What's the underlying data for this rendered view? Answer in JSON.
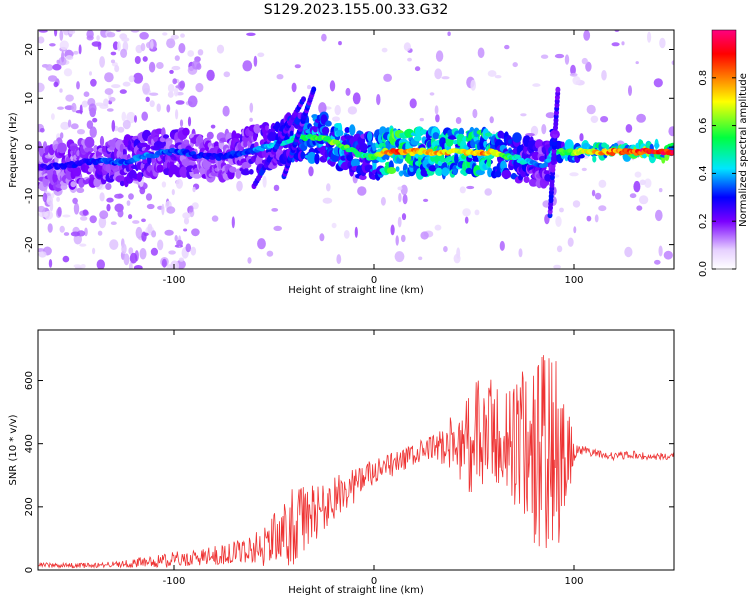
{
  "chart_data": [
    {
      "type": "heatmap",
      "title": "S129.2023.155.00.33.G32",
      "xlabel": "Height of straight line (km)",
      "ylabel": "Frequency (Hz)",
      "xlim": [
        -168,
        150
      ],
      "ylim": [
        -25,
        24
      ],
      "xticks": [
        -100,
        0,
        100
      ],
      "yticks": [
        -20,
        -10,
        0,
        10,
        20
      ],
      "grid": false,
      "ridge": {
        "x": [
          -168,
          -155,
          -145,
          -135,
          -125,
          -115,
          -105,
          -95,
          -85,
          -75,
          -65,
          -55,
          -45,
          -40,
          -35,
          -30,
          -25,
          -20,
          -15,
          -10,
          -5,
          0,
          5,
          10,
          15,
          20,
          25,
          30,
          35,
          40,
          45,
          50,
          55,
          60,
          65,
          70,
          75,
          80,
          85,
          90,
          95,
          100,
          105,
          110,
          115,
          120,
          125,
          130,
          135,
          140,
          145,
          150
        ],
        "y": [
          -4,
          -4,
          -3,
          -3,
          -3,
          -2,
          -1,
          -1,
          -2,
          -2,
          -1,
          0,
          1,
          2,
          2,
          2,
          2,
          1,
          0,
          -1,
          -2,
          -2,
          -1,
          -1,
          -1,
          -1,
          -1,
          -1,
          -1,
          -1,
          -1,
          -1,
          -1,
          -1,
          -2,
          -2,
          -3,
          -3,
          -4,
          -1,
          -1,
          -1,
          -1,
          -1,
          -1,
          -1,
          -1,
          -1,
          -1,
          -1,
          -1,
          -1
        ],
        "amplitude": [
          0.25,
          0.3,
          0.3,
          0.35,
          0.35,
          0.4,
          0.35,
          0.35,
          0.3,
          0.3,
          0.35,
          0.4,
          0.45,
          0.5,
          0.55,
          0.6,
          0.6,
          0.65,
          0.6,
          0.55,
          0.5,
          0.6,
          0.75,
          0.9,
          0.85,
          0.8,
          0.75,
          0.8,
          0.8,
          0.75,
          0.75,
          0.8,
          0.85,
          0.75,
          0.6,
          0.5,
          0.45,
          0.4,
          0.35,
          0.5,
          0.6,
          0.65,
          0.7,
          0.75,
          0.8,
          0.85,
          0.85,
          0.9,
          0.95,
          0.95,
          0.95,
          0.95
        ]
      },
      "colorbar": {
        "label": "Normalized spectral amplitude",
        "range": [
          0.0,
          1.0
        ],
        "ticks": [
          0.0,
          0.2,
          0.4,
          0.6,
          0.8
        ],
        "tick_labels": [
          "0.0",
          "0.2",
          "0.4",
          "0.6",
          "0.8"
        ],
        "colors": [
          "#ffffff",
          "#e6d0ff",
          "#7a00ff",
          "#0000ff",
          "#00e6ff",
          "#00ff40",
          "#ffff00",
          "#ff8000",
          "#ff0000",
          "#ff0080"
        ]
      }
    },
    {
      "type": "line",
      "title": "",
      "xlabel": "Height of straight line (km)",
      "ylabel": "SNR (10 * v/v)",
      "xlim": [
        -168,
        150
      ],
      "ylim": [
        0,
        760
      ],
      "xticks": [
        -100,
        0,
        100
      ],
      "yticks": [
        0,
        200,
        400,
        600
      ],
      "grid": false,
      "series": [
        {
          "color": "#ee3333",
          "x": [
            -168,
            -160,
            -150,
            -140,
            -130,
            -120,
            -110,
            -100,
            -90,
            -80,
            -70,
            -60,
            -55,
            -50,
            -45,
            -40,
            -35,
            -30,
            -25,
            -20,
            -15,
            -10,
            -5,
            0,
            5,
            10,
            15,
            20,
            25,
            30,
            35,
            40,
            45,
            50,
            55,
            60,
            65,
            70,
            75,
            80,
            85,
            90,
            95,
            100,
            105,
            110,
            115,
            120,
            125,
            130,
            135,
            140,
            145,
            150
          ],
          "y": [
            15,
            15,
            14,
            15,
            18,
            22,
            27,
            33,
            38,
            45,
            55,
            70,
            80,
            95,
            115,
            135,
            160,
            180,
            200,
            225,
            250,
            270,
            290,
            305,
            320,
            335,
            350,
            365,
            375,
            385,
            395,
            400,
            405,
            410,
            415,
            420,
            410,
            400,
            390,
            380,
            375,
            365,
            350,
            370,
            380,
            370,
            365,
            360,
            362,
            365,
            360,
            358,
            360,
            360
          ],
          "noise": [
            8,
            8,
            8,
            8,
            10,
            15,
            20,
            25,
            25,
            30,
            35,
            50,
            70,
            90,
            110,
            130,
            110,
            90,
            80,
            70,
            60,
            60,
            55,
            45,
            40,
            40,
            35,
            35,
            40,
            50,
            60,
            100,
            140,
            200,
            200,
            180,
            180,
            200,
            260,
            320,
            320,
            320,
            280,
            25,
            15,
            12,
            12,
            12,
            12,
            12,
            12,
            12,
            12,
            12
          ]
        }
      ]
    }
  ]
}
